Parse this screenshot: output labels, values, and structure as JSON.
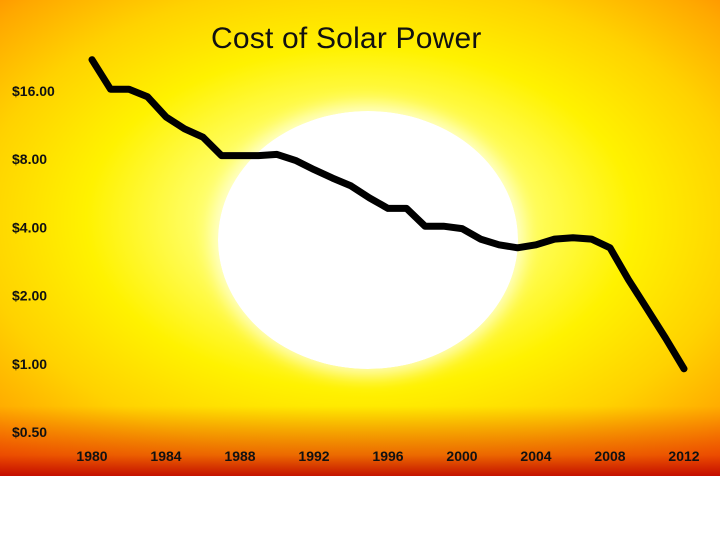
{
  "chart_data": {
    "type": "line",
    "title": "Cost of Solar Power",
    "xlabel": "",
    "ylabel": "",
    "y_scale": "log2",
    "ylim": [
      0.5,
      16
    ],
    "xlim": [
      1980,
      2012
    ],
    "y_ticks": [
      {
        "value": 16,
        "label": "$16.00"
      },
      {
        "value": 8,
        "label": "$8.00"
      },
      {
        "value": 4,
        "label": "$4.00"
      },
      {
        "value": 2,
        "label": "$2.00"
      },
      {
        "value": 1,
        "label": "$1.00"
      },
      {
        "value": 0.5,
        "label": "$0.50"
      }
    ],
    "x_ticks": [
      "1980",
      "1984",
      "1988",
      "1992",
      "1996",
      "2000",
      "2004",
      "2008",
      "2012"
    ],
    "grid": false,
    "legend": "none",
    "series": [
      {
        "color": "#000000",
        "x": [
          1980.0,
          1981.0,
          1982.0,
          1983.0,
          1984.0,
          1985.0,
          1986.0,
          1987.0,
          1988.0,
          1989.0,
          1990.0,
          1991.0,
          1992.0,
          1993.0,
          1994.0,
          1995.0,
          1996.0,
          1997.0,
          1998.0,
          1999.0,
          2000.0,
          2001.0,
          2002.0,
          2003.0,
          2004.0,
          2005.0,
          2006.0,
          2007.0,
          2008.0,
          2009.0,
          2010.0,
          2011.0,
          2012.0
        ],
        "values": [
          22.0,
          16.3,
          16.3,
          15.1,
          12.3,
          10.9,
          10.0,
          8.3,
          8.3,
          8.3,
          8.4,
          7.9,
          7.2,
          6.6,
          6.1,
          5.4,
          4.85,
          4.85,
          4.05,
          4.05,
          3.95,
          3.55,
          3.35,
          3.25,
          3.35,
          3.55,
          3.6,
          3.55,
          3.25,
          2.35,
          1.75,
          1.3,
          0.95
        ]
      }
    ]
  },
  "colors": {
    "line": "#000000",
    "text": "#111111",
    "sun": "#ffffff",
    "background_center": "#ffff70",
    "background_edge": "#d81000"
  }
}
